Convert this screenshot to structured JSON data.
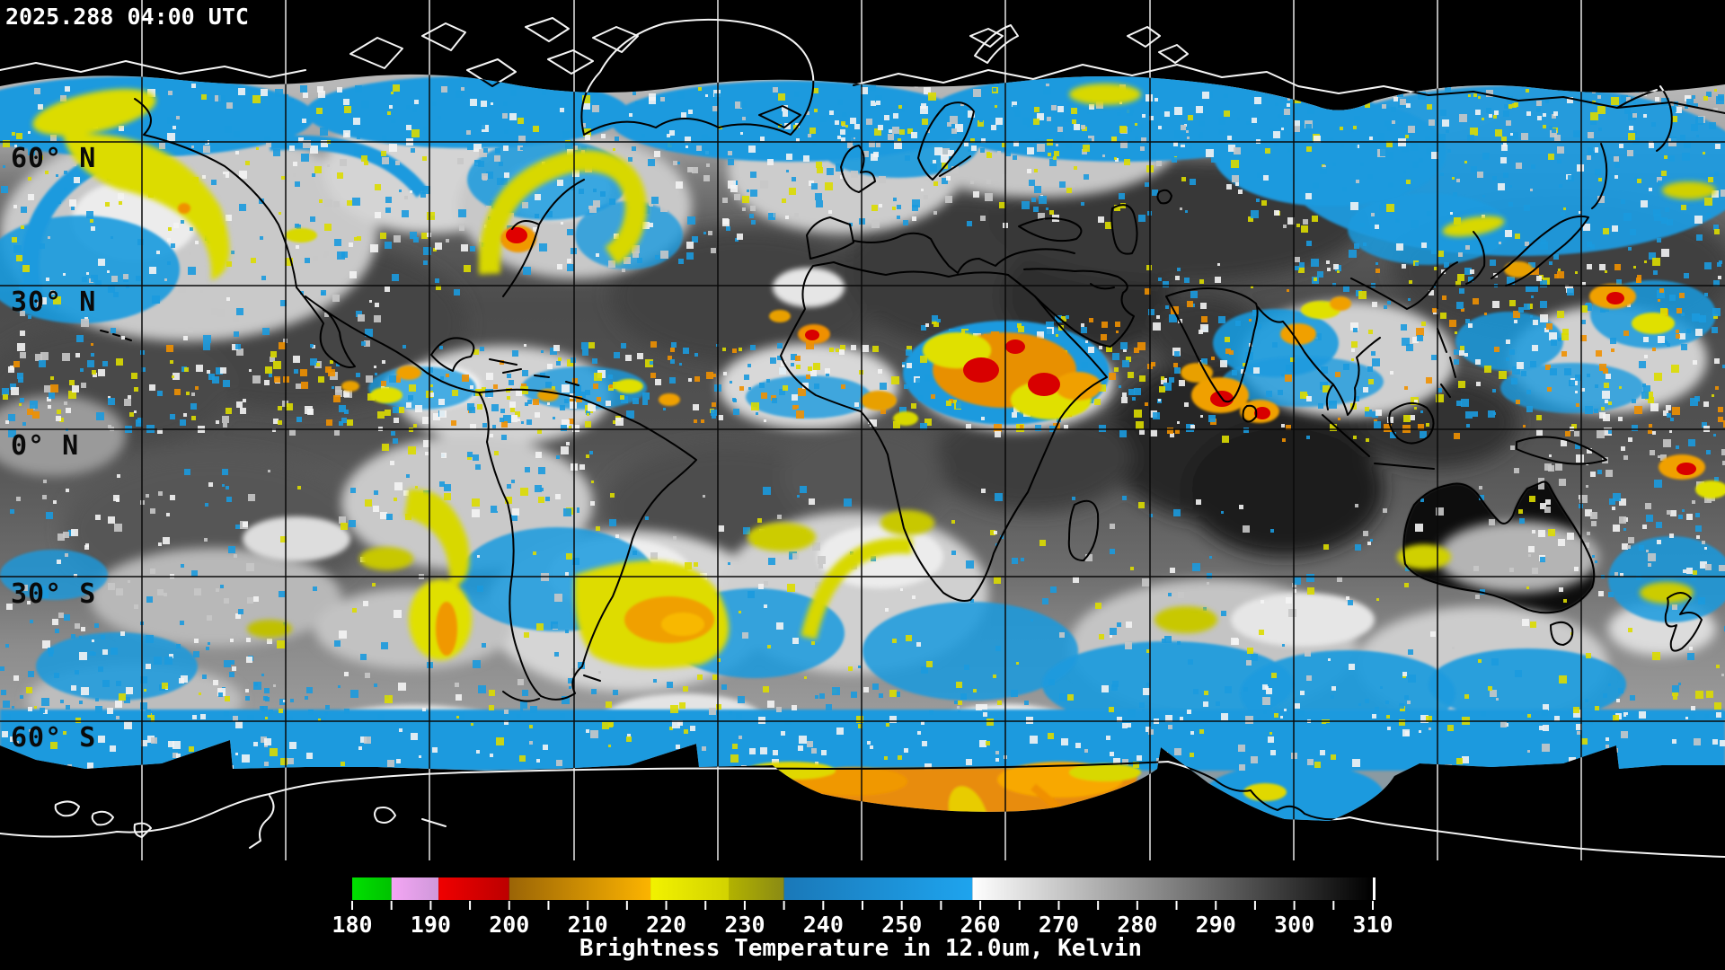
{
  "header": {
    "timestamp": "2025.288  04:00 UTC"
  },
  "map": {
    "latitude_labels": [
      "60° N",
      "30° N",
      "0° N",
      "30° S",
      "60° S"
    ]
  },
  "colorbar": {
    "title": "Brightness Temperature in 12.0um, Kelvin",
    "unit": "Kelvin",
    "min": 180,
    "max": 310,
    "tick_step_kelvin": 5,
    "label_step_kelvin": 10,
    "tick_labels": [
      "180",
      "190",
      "200",
      "210",
      "220",
      "230",
      "240",
      "250",
      "260",
      "270",
      "280",
      "290",
      "300",
      "310"
    ],
    "segments": [
      {
        "from": 180,
        "to": 185,
        "color_start": "#00e000",
        "color_end": "#00c200"
      },
      {
        "from": 185,
        "to": 191,
        "color_start": "#f4a6f4",
        "color_end": "#cf98da"
      },
      {
        "from": 191,
        "to": 200,
        "color_start": "#f00000",
        "color_end": "#bc0000"
      },
      {
        "from": 200,
        "to": 218,
        "color_start": "#9a6406",
        "color_end": "#fcb400"
      },
      {
        "from": 218,
        "to": 228,
        "color_start": "#f2f200",
        "color_end": "#d2d200"
      },
      {
        "from": 228,
        "to": 235,
        "color_start": "#b2b200",
        "color_end": "#8a8a14"
      },
      {
        "from": 235,
        "to": 259,
        "color_start": "#1a78b8",
        "color_end": "#1ea4ee"
      },
      {
        "from": 259,
        "to": 310,
        "color_start": "#ffffff",
        "color_end": "#000000"
      }
    ],
    "colors": {
      "cold_cloud_blue": "#1b9ade",
      "convection_yellow": "#dcdc00",
      "convection_orange": "#f09000",
      "convection_red": "#d80000"
    }
  }
}
